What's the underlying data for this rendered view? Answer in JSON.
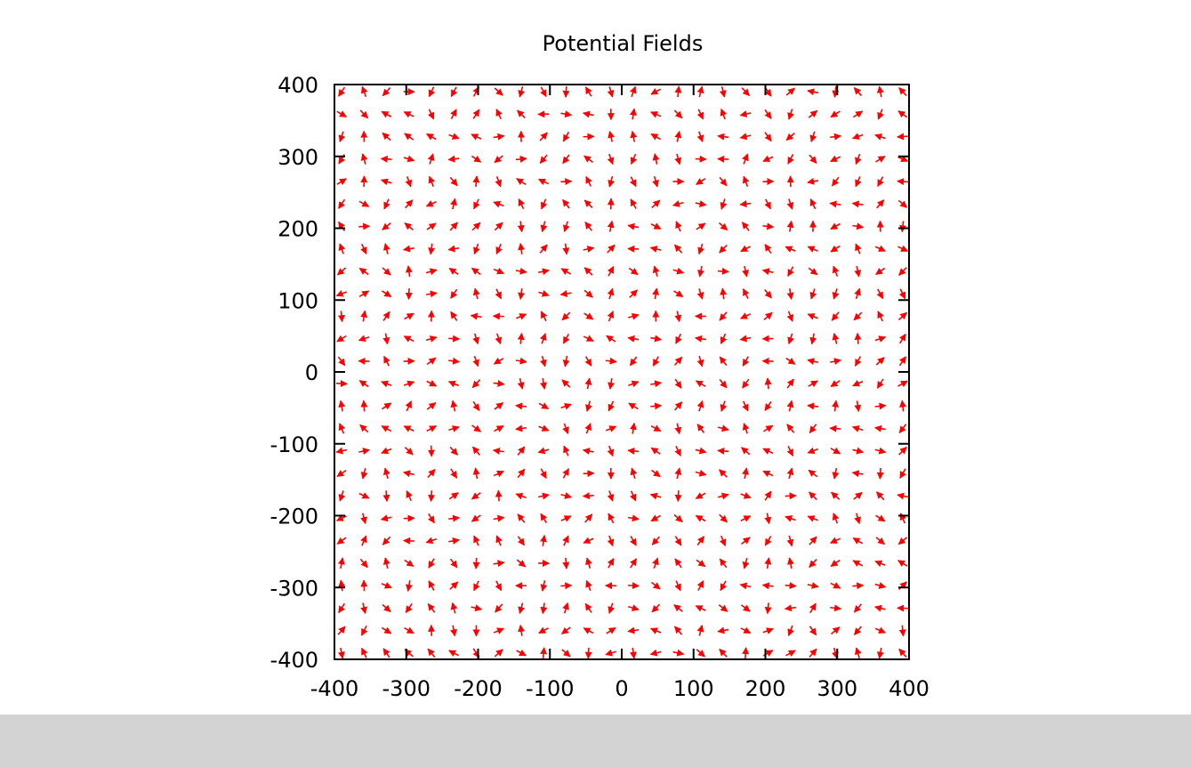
{
  "chart_data": {
    "type": "vector-field",
    "title": "Potential Fields",
    "xlim": [
      -400,
      400
    ],
    "ylim": [
      -400,
      400
    ],
    "x_ticks": [
      "-400",
      "-300",
      "-200",
      "-100",
      "0",
      "100",
      "200",
      "300",
      "400"
    ],
    "y_ticks": [
      "400",
      "300",
      "200",
      "100",
      "0",
      "-100",
      "-200",
      "-300",
      "-400"
    ],
    "grid_spacing": 31.25,
    "grid_x_start": -390,
    "grid_y_start": 390,
    "vector_length": 15,
    "grid_on": false,
    "legend": "none",
    "arrow_color": "#ff0000",
    "axis_color": "#000000"
  }
}
